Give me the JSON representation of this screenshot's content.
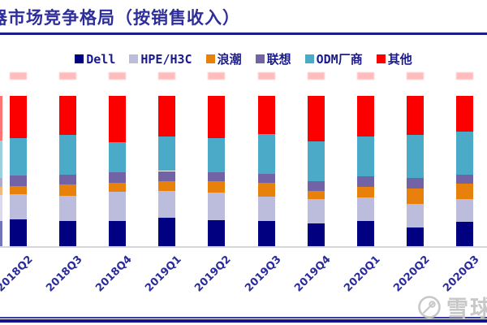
{
  "title": {
    "clipped_char": "器",
    "text": "市场竞争格局（按销售收入）"
  },
  "legend": [
    {
      "label": "Dell",
      "color": "#000080"
    },
    {
      "label": "HPE/H3C",
      "color": "#BCBCDC"
    },
    {
      "label": "浪潮",
      "color": "#E8810B"
    },
    {
      "label": "联想",
      "color": "#7263A6"
    },
    {
      "label": "ODM厂商",
      "color": "#4AAAC8"
    },
    {
      "label": "其他",
      "color": "#FC0000"
    }
  ],
  "chart_data": {
    "type": "bar",
    "variant": "stacked-percent",
    "title": "市场竞争格局（按销售收入）",
    "categories": [
      "2018Q2",
      "2018Q3",
      "2018Q4",
      "2019Q1",
      "2019Q2",
      "2019Q3",
      "2019Q4",
      "2020Q1",
      "2020Q2",
      "2020Q3"
    ],
    "unit": "%",
    "ylim": [
      0,
      100
    ],
    "grid": false,
    "legend_position": "top",
    "x_label_rotation_deg": 45,
    "series": [
      {
        "name": "Dell",
        "color": "#000080",
        "values": [
          18,
          16.5,
          17,
          19,
          17.5,
          16.5,
          15,
          16.5,
          12.5,
          16
        ]
      },
      {
        "name": "HPE/H3C",
        "color": "#BCBCDC",
        "values": [
          16.5,
          17,
          19,
          18,
          18,
          16.5,
          16.5,
          16,
          15.5,
          15.5
        ]
      },
      {
        "name": "浪潮",
        "color": "#E8810B",
        "values": [
          5.5,
          7.5,
          6,
          6.5,
          7.5,
          9,
          5,
          7,
          10.5,
          10
        ]
      },
      {
        "name": "联想",
        "color": "#7263A6",
        "values": [
          7,
          6.5,
          7,
          6.5,
          6,
          6,
          7,
          7,
          7,
          6
        ]
      },
      {
        "name": "ODM厂商",
        "color": "#4AAAC8",
        "values": [
          25,
          26.5,
          20,
          23,
          23,
          26.5,
          26.5,
          26.5,
          28.5,
          28.5
        ]
      },
      {
        "name": "其他",
        "color": "#FC0000",
        "values": [
          28,
          26,
          31,
          27,
          28,
          25.5,
          30,
          27,
          26,
          24
        ]
      }
    ],
    "clipped_left_bar_values": [
      17,
      17,
      5.5,
      6,
      25,
      29.5
    ]
  },
  "watermark": {
    "text": "雪球",
    "logo": "xueqiu-camera-logo"
  }
}
